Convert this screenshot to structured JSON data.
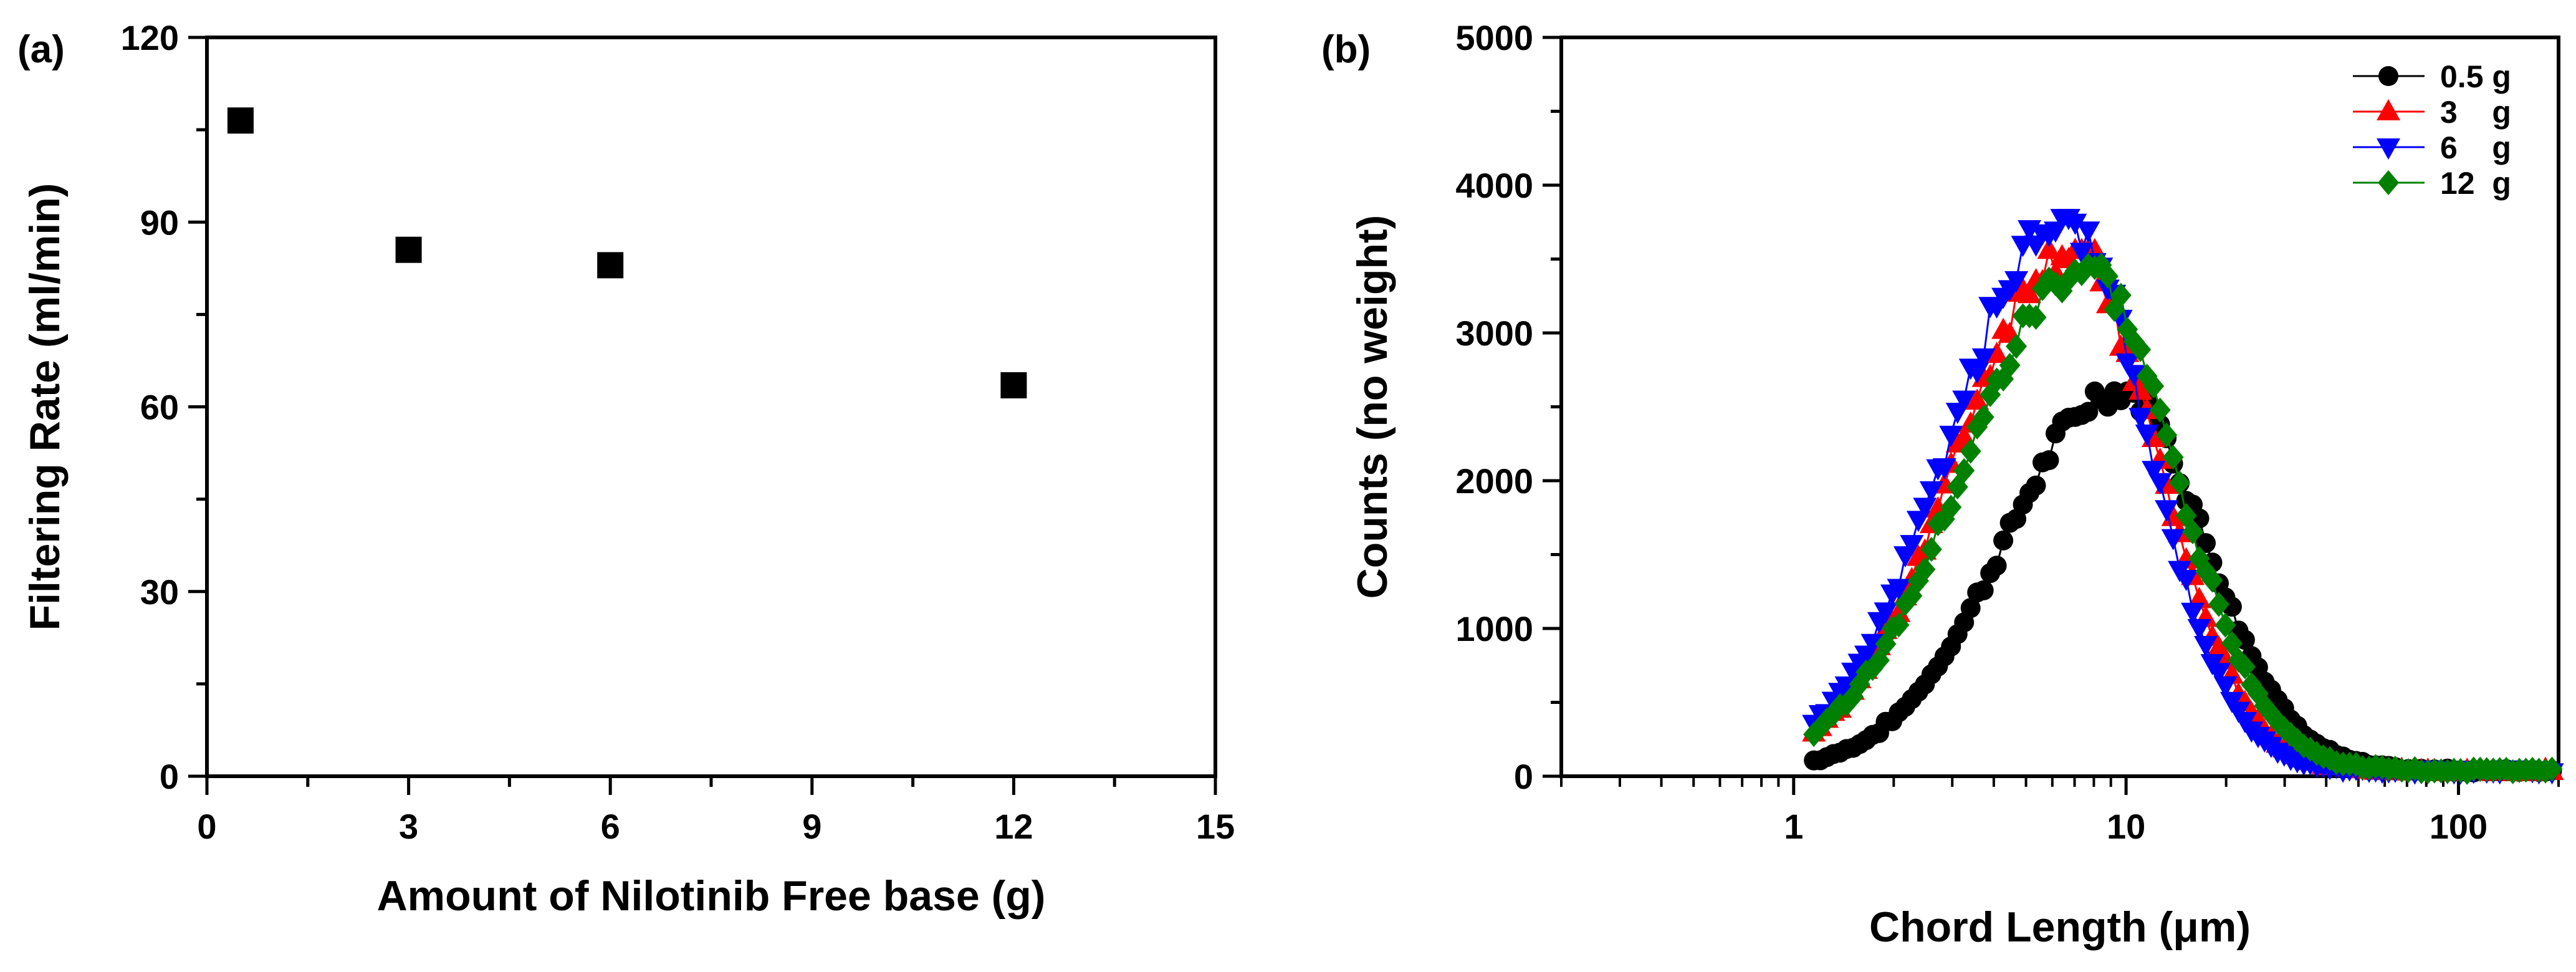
{
  "chart_data": [
    {
      "panel_label": "(a)",
      "type": "scatter",
      "xlabel": "Amount of Nilotinib Free base (g)",
      "ylabel": "Filtering Rate (ml/min)",
      "xlim": [
        0,
        15
      ],
      "ylim": [
        0,
        120
      ],
      "xticks": [
        "0",
        "3",
        "6",
        "9",
        "12",
        "15"
      ],
      "yticks": [
        "0",
        "30",
        "60",
        "90",
        "120"
      ],
      "grid": false,
      "series": [
        {
          "marker": "square",
          "color": "#000000",
          "points": [
            {
              "x": 0.5,
              "y": 106.5
            },
            {
              "x": 3,
              "y": 85.5
            },
            {
              "x": 6,
              "y": 83
            },
            {
              "x": 12,
              "y": 63.5
            }
          ]
        }
      ]
    },
    {
      "panel_label": "(b)",
      "type": "line",
      "xlabel": "Chord Length (μm)",
      "ylabel": "Counts (no weight)",
      "xscale": "log",
      "xlim": [
        0.2,
        200
      ],
      "ylim": [
        0,
        5000
      ],
      "xticks": [
        "1",
        "10",
        "100"
      ],
      "yticks": [
        "0",
        "1000",
        "2000",
        "3000",
        "4000",
        "5000"
      ],
      "grid": false,
      "legend_position": "top-right",
      "series": [
        {
          "name": "0.5 g",
          "marker": "circle",
          "color": "#000000",
          "peak_x": 9.5,
          "peak_y": 2580,
          "sigma_left": 0.34,
          "sigma_right": 0.26,
          "x_range": [
            1.15,
            200
          ],
          "y_max": 2605
        },
        {
          "name": "3    g",
          "marker": "triangle-up",
          "color": "#ff0000",
          "peak_x": 6.8,
          "peak_y": 3530,
          "sigma_left": 0.34,
          "sigma_right": 0.26,
          "x_range": [
            1.15,
            200
          ],
          "y_max": 3560
        },
        {
          "name": "6    g",
          "marker": "triangle-down",
          "color": "#0000ff",
          "peak_x": 6.5,
          "peak_y": 3740,
          "sigma_left": 0.34,
          "sigma_right": 0.25,
          "x_range": [
            1.15,
            200
          ],
          "y_max": 3780
        },
        {
          "name": "12  g",
          "marker": "diamond",
          "color": "#008000",
          "peak_x": 7.5,
          "peak_y": 3400,
          "sigma_left": 0.36,
          "sigma_right": 0.27,
          "x_range": [
            1.15,
            200
          ],
          "y_max": 3460
        }
      ]
    }
  ]
}
